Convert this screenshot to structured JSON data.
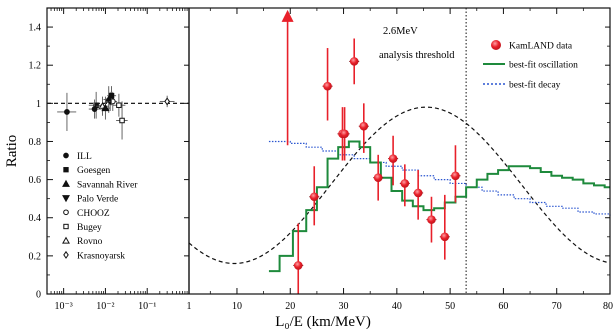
{
  "chart_data": {
    "type": "scatter",
    "ylabel": "Ratio",
    "xlabel": "L₀/E (km/MeV)",
    "ylim": [
      0,
      1.5
    ],
    "y_ticks": [
      "0",
      "0.2",
      "0.4",
      "0.6",
      "0.8",
      "1",
      "1.2",
      "1.4"
    ],
    "left_panel": {
      "x_scale": "log",
      "xlim": [
        0.0004,
        1
      ],
      "x_ticks": [
        "10⁻³",
        "10⁻²",
        "10⁻¹",
        "1"
      ],
      "reference_line": 1.0,
      "experiments": [
        {
          "name": "ILL",
          "marker": "filled-circle",
          "x": 0.0012,
          "y": 0.955,
          "xerr_lo": 0.0007,
          "xerr_hi": 0.002,
          "yerr": 0.1
        },
        {
          "name": "Goesgen",
          "marker": "filled-square",
          "x": 0.006,
          "y": 0.99,
          "xerr_lo": 0.004,
          "xerr_hi": 0.009,
          "yerr": 0.07
        },
        {
          "name": "Savannah River",
          "marker": "filled-triangle",
          "x": 0.012,
          "y": 1.02,
          "xerr_lo": 0.009,
          "xerr_hi": 0.016,
          "yerr": 0.07
        },
        {
          "name": "Palo Verde",
          "marker": "filled-triangle-down",
          "x": 0.013,
          "y": 1.01,
          "xerr_lo": 0.01,
          "xerr_hi": 0.017,
          "yerr": 0.05
        },
        {
          "name": "CHOOZ",
          "marker": "open-circle",
          "x": 0.015,
          "y": 1.01,
          "xerr_lo": 0.012,
          "xerr_hi": 0.019,
          "yerr": 0.05
        },
        {
          "name": "Bugey",
          "marker": "open-square",
          "x": 0.021,
          "y": 0.99,
          "xerr_lo": 0.015,
          "xerr_hi": 0.03,
          "yerr": 0.06
        },
        {
          "name": "Rovno",
          "marker": "open-triangle",
          "x": 0.0085,
          "y": 0.985,
          "xerr_lo": 0.006,
          "xerr_hi": 0.012,
          "yerr": 0.05
        },
        {
          "name": "Krasnoyarsk",
          "marker": "open-diamond",
          "x": 0.3,
          "y": 1.01,
          "xerr_lo": 0.2,
          "xerr_hi": 0.45,
          "yerr": 0.03
        },
        {
          "name": "",
          "marker": "filled-square",
          "x": 0.014,
          "y": 1.04,
          "xerr_lo": 0.011,
          "xerr_hi": 0.018,
          "yerr": 0.05
        },
        {
          "name": "",
          "marker": "open-square",
          "x": 0.025,
          "y": 0.91,
          "xerr_lo": 0.018,
          "xerr_hi": 0.034,
          "yerr": 0.1
        },
        {
          "name": "",
          "marker": "filled-circle",
          "x": 0.0055,
          "y": 0.97,
          "xerr_lo": 0.004,
          "xerr_hi": 0.008,
          "yerr": 0.05
        },
        {
          "name": "",
          "marker": "filled-triangle",
          "x": 0.01,
          "y": 0.975,
          "xerr_lo": 0.008,
          "xerr_hi": 0.013,
          "yerr": 0.06
        }
      ]
    },
    "right_panel": {
      "x_scale": "linear",
      "xlim": [
        1,
        80
      ],
      "x_ticks": [
        10,
        20,
        30,
        40,
        50,
        60,
        70,
        80
      ],
      "first_tick_label": "1",
      "threshold_x": 53,
      "annotation_line1": "2.6MeV",
      "annotation_line2": "analysis threshold",
      "kamland": {
        "name": "KamLAND data",
        "points": [
          {
            "x": 19.5,
            "y": 1.48,
            "yerr_lo": 0.7,
            "yerr_hi": 0.0
          },
          {
            "x": 21.5,
            "y": 0.15,
            "yerr_lo": 0.15,
            "yerr_hi": 0.22
          },
          {
            "x": 24.5,
            "y": 0.51,
            "yerr_lo": 0.15,
            "yerr_hi": 0.16
          },
          {
            "x": 27.0,
            "y": 1.09,
            "yerr_lo": 0.18,
            "yerr_hi": 0.2
          },
          {
            "x": 29.8,
            "y": 0.84,
            "yerr_lo": 0.14,
            "yerr_hi": 0.14
          },
          {
            "x": 30.2,
            "y": 0.84,
            "yerr_lo": 0.14,
            "yerr_hi": 0.14
          },
          {
            "x": 32.0,
            "y": 1.22,
            "yerr_lo": 0.12,
            "yerr_hi": 0.12
          },
          {
            "x": 33.8,
            "y": 0.88,
            "yerr_lo": 0.14,
            "yerr_hi": 0.12
          },
          {
            "x": 36.5,
            "y": 0.61,
            "yerr_lo": 0.12,
            "yerr_hi": 0.12
          },
          {
            "x": 39.3,
            "y": 0.71,
            "yerr_lo": 0.14,
            "yerr_hi": 0.12
          },
          {
            "x": 41.5,
            "y": 0.58,
            "yerr_lo": 0.12,
            "yerr_hi": 0.1
          },
          {
            "x": 44.0,
            "y": 0.53,
            "yerr_lo": 0.14,
            "yerr_hi": 0.12
          },
          {
            "x": 46.5,
            "y": 0.39,
            "yerr_lo": 0.12,
            "yerr_hi": 0.12
          },
          {
            "x": 49.0,
            "y": 0.3,
            "yerr_lo": 0.12,
            "yerr_hi": 0.22
          },
          {
            "x": 51.0,
            "y": 0.62,
            "yerr_lo": 0.14,
            "yerr_hi": 0.16
          }
        ]
      },
      "best_fit_oscillation": {
        "name": "best-fit oscillation",
        "steps": [
          [
            16,
            0.12
          ],
          [
            18,
            0.2
          ],
          [
            20.5,
            0.33
          ],
          [
            23,
            0.44
          ],
          [
            25,
            0.56
          ],
          [
            27,
            0.71
          ],
          [
            29,
            0.77
          ],
          [
            31,
            0.8
          ],
          [
            33,
            0.77
          ],
          [
            35,
            0.69
          ],
          [
            37,
            0.61
          ],
          [
            39,
            0.54
          ],
          [
            41,
            0.49
          ],
          [
            43,
            0.46
          ],
          [
            45,
            0.44
          ],
          [
            47,
            0.45
          ],
          [
            49,
            0.48
          ],
          [
            51,
            0.51
          ],
          [
            53,
            0.56
          ],
          [
            55,
            0.6
          ],
          [
            57,
            0.63
          ],
          [
            59,
            0.65
          ],
          [
            61,
            0.67
          ],
          [
            63,
            0.67
          ],
          [
            65,
            0.66
          ],
          [
            67,
            0.64
          ],
          [
            69,
            0.62
          ],
          [
            71,
            0.61
          ],
          [
            73,
            0.6
          ],
          [
            75,
            0.58
          ],
          [
            77,
            0.57
          ],
          [
            79,
            0.56
          ]
        ]
      },
      "best_fit_decay": {
        "name": "best-fit decay",
        "steps": [
          [
            16,
            0.8
          ],
          [
            20,
            0.79
          ],
          [
            23,
            0.77
          ],
          [
            26,
            0.75
          ],
          [
            29,
            0.73
          ],
          [
            32,
            0.71
          ],
          [
            35,
            0.69
          ],
          [
            38,
            0.67
          ],
          [
            41,
            0.65
          ],
          [
            44,
            0.62
          ],
          [
            47,
            0.6
          ],
          [
            50,
            0.58
          ],
          [
            53,
            0.56
          ],
          [
            56,
            0.54
          ],
          [
            59,
            0.52
          ],
          [
            62,
            0.5
          ],
          [
            65,
            0.48
          ],
          [
            68,
            0.46
          ],
          [
            71,
            0.45
          ],
          [
            74,
            0.43
          ],
          [
            77,
            0.42
          ],
          [
            80,
            0.41
          ]
        ]
      },
      "oscillation_curve_note": "dashed black full-oscillation curve: minima near 9.5, 45.5 km/MeV (y~0.16), maxima near 1, 29, 61.5 km/MeV (y~0.98)"
    },
    "legend": {
      "placement": "top-right",
      "kamland": "KamLAND data",
      "oscillation": "best-fit oscillation",
      "decay": "best-fit decay"
    },
    "colors": {
      "kamland": "#e8202a",
      "oscillation": "#1e8a3c",
      "decay": "#2a55d0",
      "reference": "#000000"
    }
  }
}
